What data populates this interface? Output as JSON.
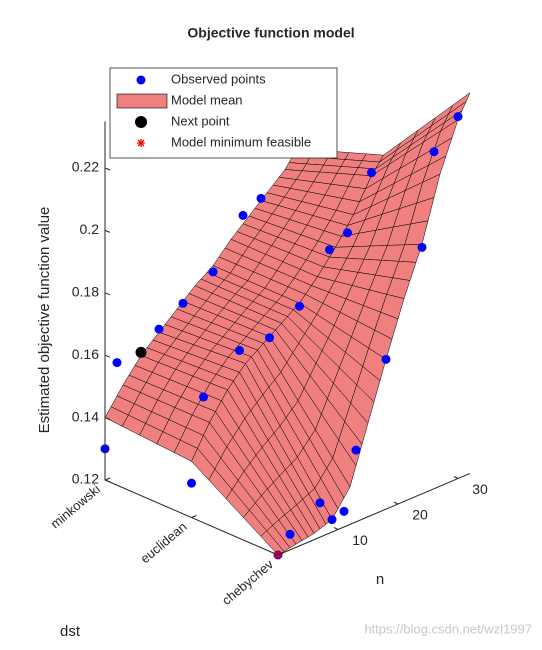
{
  "chart_data": {
    "type": "surface3d",
    "title": "Objective function model",
    "zlabel": "Estimated objective function value",
    "dst_label": "dst",
    "n_label": "n",
    "dst_categories": [
      "minkowski",
      "euclidean",
      "chebychev"
    ],
    "nlim": [
      0,
      32
    ],
    "nticks": [
      10,
      20,
      30
    ],
    "zlim": [
      0.12,
      0.235
    ],
    "zticks": [
      0.12,
      0.14,
      0.16,
      0.18,
      0.2,
      0.22
    ],
    "model_mean": {
      "name": "Model mean",
      "color": "#f08080",
      "n": [
        0,
        3,
        6,
        9,
        12,
        15,
        18,
        21,
        24,
        27,
        30,
        32
      ],
      "values": [
        [
          0.14,
          0.148,
          0.155,
          0.16,
          0.165,
          0.17,
          0.174,
          0.18,
          0.185,
          0.19,
          0.195,
          0.2
        ],
        [
          0.138,
          0.148,
          0.156,
          0.162,
          0.166,
          0.17,
          0.174,
          0.18,
          0.187,
          0.195,
          0.205,
          0.21
        ],
        [
          0.12,
          0.121,
          0.122,
          0.124,
          0.132,
          0.15,
          0.168,
          0.185,
          0.2,
          0.22,
          0.235,
          0.242
        ]
      ]
    },
    "observed": {
      "name": "Observed points",
      "color": "#0000ff",
      "dst": [
        "minkowski",
        "minkowski",
        "minkowski",
        "minkowski",
        "minkowski",
        "minkowski",
        "minkowski",
        "euclidean",
        "euclidean",
        "euclidean",
        "euclidean",
        "euclidean",
        "euclidean",
        "euclidean",
        "euclidean",
        "chebychev",
        "chebychev",
        "chebychev",
        "chebychev",
        "chebychev",
        "chebychev",
        "chebychev",
        "chebychev",
        "chebychev",
        "chebychev"
      ],
      "n": [
        0,
        2,
        9,
        13,
        18,
        23,
        26,
        0,
        2,
        8,
        13,
        18,
        23,
        26,
        30,
        2,
        7,
        9,
        11,
        13,
        18,
        24,
        26,
        30,
        0
      ],
      "values": [
        0.13,
        0.156,
        0.161,
        0.166,
        0.172,
        0.186,
        0.189,
        0.131,
        0.157,
        0.167,
        0.167,
        0.173,
        0.187,
        0.19,
        0.206,
        0.125,
        0.131,
        0.124,
        0.125,
        0.143,
        0.168,
        0.199,
        0.228,
        0.236,
        0.12
      ]
    },
    "next_point": {
      "name": "Next point",
      "color": "#000000",
      "dst": "minkowski",
      "n": 6,
      "value": 0.156
    },
    "minimum": {
      "name": "Model minimum feasible",
      "color": "#ff0000",
      "dst": "chebychev",
      "n": 0,
      "value": 0.12
    }
  },
  "watermark": "https://blog.csdn.net/wzl1997"
}
